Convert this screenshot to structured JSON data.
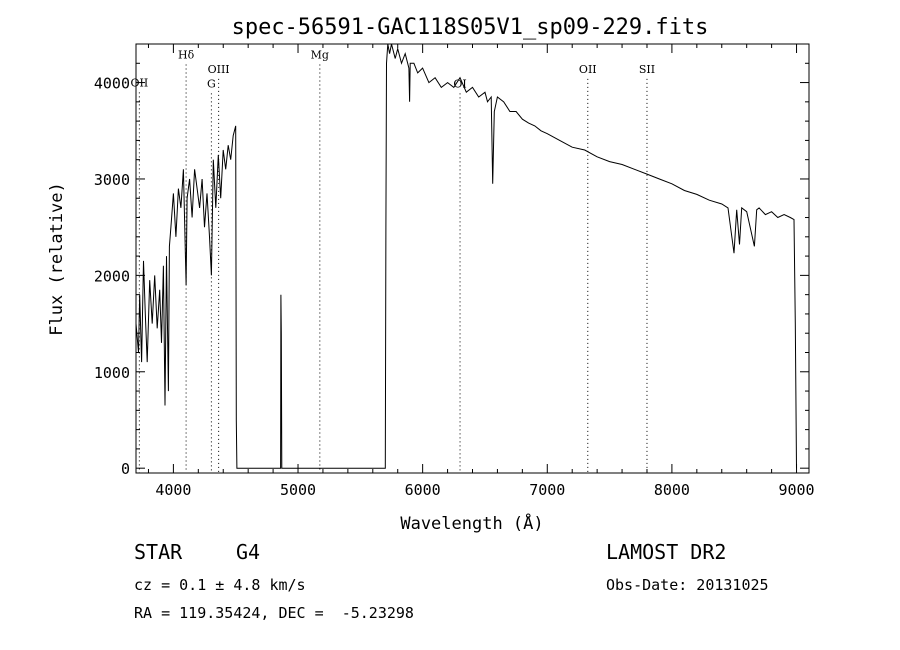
{
  "chart_data": {
    "type": "line",
    "title": "spec-56591-GAC118S05V1_sp09-229.fits",
    "xlabel": "Wavelength (Å)",
    "ylabel": "Flux (relative)",
    "xlim": [
      3700,
      9100
    ],
    "ylim": [
      -50,
      4400
    ],
    "x_ticks": [
      4000,
      5000,
      6000,
      7000,
      8000,
      9000
    ],
    "y_ticks": [
      0,
      1000,
      2000,
      3000,
      4000
    ],
    "grid": false,
    "line_color": "#000000",
    "line_markers": [
      {
        "label": "OII",
        "x": 3727,
        "label_y": 3960
      },
      {
        "label": "Hδ",
        "x": 4102,
        "label_y": 4250
      },
      {
        "label": "G",
        "x": 4305,
        "label_y": 3950
      },
      {
        "label": "OIII",
        "x": 4363,
        "label_y": 4100
      },
      {
        "label": "Mg",
        "x": 5175,
        "label_y": 4250
      },
      {
        "label": "OI",
        "x": 6300,
        "label_y": 3950
      },
      {
        "label": "OII",
        "x": 7325,
        "label_y": 4100
      },
      {
        "label": "SII",
        "x": 7800,
        "label_y": 4100
      }
    ],
    "series": [
      {
        "x": [
          3700,
          3720,
          3730,
          3745,
          3760,
          3775,
          3790,
          3810,
          3830,
          3850,
          3870,
          3890,
          3905,
          3920,
          3933,
          3945,
          3960,
          3968,
          3980,
          4000,
          4020,
          4040,
          4060,
          4080,
          4102,
          4110,
          4130,
          4150,
          4170,
          4190,
          4210,
          4230,
          4250,
          4270,
          4290,
          4305,
          4320,
          4340,
          4360,
          4380,
          4400,
          4420,
          4440,
          4460,
          4480,
          4500,
          4505,
          4510,
          4520,
          4860,
          4863,
          4866,
          4870,
          4880,
          5700,
          5705,
          5710,
          5720,
          5735,
          5750,
          5780,
          5800,
          5830,
          5860,
          5890,
          5895,
          5900,
          5930,
          5960,
          6000,
          6050,
          6100,
          6150,
          6200,
          6250,
          6300,
          6350,
          6400,
          6450,
          6500,
          6520,
          6550,
          6562,
          6575,
          6600,
          6650,
          6700,
          6750,
          6800,
          6850,
          6900,
          6950,
          7000,
          7100,
          7200,
          7300,
          7400,
          7500,
          7600,
          7700,
          7800,
          7900,
          8000,
          8100,
          8200,
          8300,
          8400,
          8450,
          8498,
          8520,
          8542,
          8560,
          8600,
          8662,
          8680,
          8700,
          8750,
          8800,
          8850,
          8900,
          8950,
          8980,
          8990,
          9000
        ],
        "y": [
          1500,
          1200,
          1800,
          1100,
          2150,
          1600,
          1100,
          1950,
          1500,
          2000,
          1450,
          1850,
          1300,
          2100,
          650,
          2200,
          800,
          2300,
          2500,
          2850,
          2400,
          2900,
          2700,
          3100,
          1900,
          2800,
          3000,
          2600,
          3100,
          2900,
          2700,
          3000,
          2500,
          2850,
          2400,
          2000,
          3200,
          2700,
          3250,
          2800,
          3300,
          3100,
          3350,
          3200,
          3450,
          3550,
          500,
          0,
          0,
          0,
          1800,
          1400,
          0,
          0,
          0,
          2500,
          4200,
          4500,
          4300,
          4400,
          4250,
          4350,
          4200,
          4300,
          4150,
          3800,
          4200,
          4200,
          4100,
          4150,
          4000,
          4050,
          3950,
          4000,
          3950,
          4050,
          3900,
          3950,
          3850,
          3900,
          3800,
          3850,
          2950,
          3700,
          3850,
          3800,
          3700,
          3700,
          3620,
          3580,
          3550,
          3500,
          3470,
          3400,
          3330,
          3300,
          3230,
          3180,
          3150,
          3100,
          3050,
          3000,
          2950,
          2880,
          2840,
          2780,
          2740,
          2700,
          2230,
          2680,
          2320,
          2700,
          2660,
          2300,
          2680,
          2700,
          2630,
          2660,
          2600,
          2630,
          2600,
          2580,
          1500,
          0
        ]
      }
    ]
  },
  "info": {
    "object_class": "STAR",
    "object_subclass": "G4",
    "cz_text": "cz = 0.1 ± 4.8 km/s",
    "radec_text": "RA = 119.35424, DEC =  -5.23298",
    "survey": "LAMOST DR2",
    "obs_date": "Obs-Date: 20131025"
  }
}
